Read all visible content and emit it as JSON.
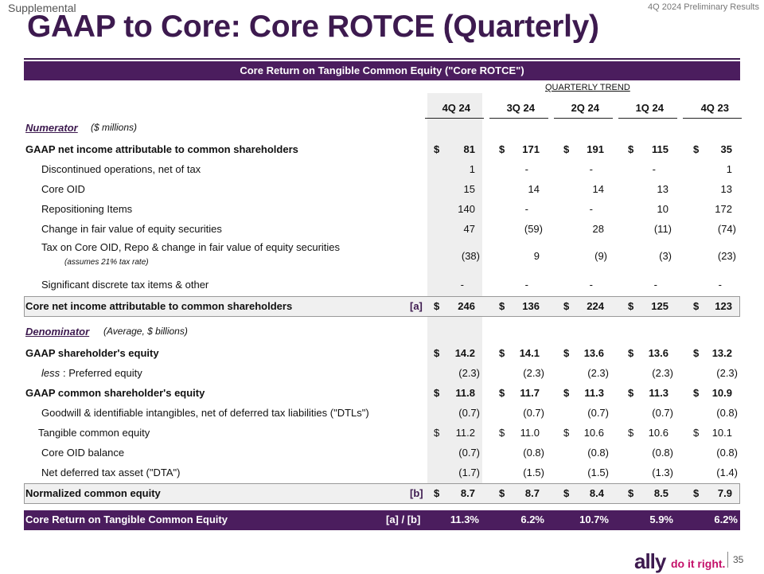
{
  "header": {
    "supplemental": "Supplemental",
    "prelim": "4Q 2024 Preliminary Results",
    "title": "GAAP to Core: Core ROTCE (Quarterly)"
  },
  "table": {
    "band_title": "Core Return on Tangible Common Equity (\"Core ROTCE\")",
    "trend_label": "QUARTERLY TREND",
    "columns": [
      "4Q 24",
      "3Q 24",
      "2Q 24",
      "1Q 24",
      "4Q 23"
    ],
    "numerator": {
      "label": "Numerator",
      "note": "($ millions)"
    },
    "denominator": {
      "label": "Denominator",
      "note": "(Average, $ billions)"
    },
    "rows": {
      "gaap_ni": {
        "label": "GAAP net income attributable to common shareholders",
        "cur": "$",
        "values": [
          "81",
          "171",
          "191",
          "115",
          "35"
        ]
      },
      "disc_ops": {
        "label": "Discontinued operations, net of tax",
        "values": [
          "1",
          "-",
          "-",
          "-",
          "1"
        ]
      },
      "core_oid": {
        "label": "Core OID",
        "values": [
          "15",
          "14",
          "14",
          "13",
          "13"
        ]
      },
      "repo": {
        "label": "Repositioning Items",
        "values": [
          "140",
          "-",
          "-",
          "10",
          "172"
        ]
      },
      "fv_change": {
        "label": "Change in fair value of equity securities",
        "values": [
          "47",
          "(59)",
          "28",
          "(11)",
          "(74)"
        ]
      },
      "tax": {
        "label": "Tax on Core OID, Repo & change in fair value of equity securities",
        "note": "(assumes 21% tax rate)",
        "values": [
          "(38)",
          "9",
          "(9)",
          "(3)",
          "(23)"
        ]
      },
      "sig_tax": {
        "label": "Significant discrete tax items & other",
        "values": [
          "-",
          "-",
          "-",
          "-",
          "-"
        ]
      },
      "core_ni": {
        "label": "Core net income attributable to common shareholders",
        "tag": "[a]",
        "cur": "$",
        "values": [
          "246",
          "136",
          "224",
          "125",
          "123"
        ]
      },
      "gaap_eq": {
        "label": "GAAP shareholder's equity",
        "cur": "$",
        "values": [
          "14.2",
          "14.1",
          "13.6",
          "13.6",
          "13.2"
        ]
      },
      "preferred": {
        "label_italic": "less",
        "label": ":  Preferred equity",
        "values": [
          "(2.3)",
          "(2.3)",
          "(2.3)",
          "(2.3)",
          "(2.3)"
        ]
      },
      "common_eq": {
        "label": "GAAP common shareholder's equity",
        "cur": "$",
        "values": [
          "11.8",
          "11.7",
          "11.3",
          "11.3",
          "10.9"
        ]
      },
      "goodwill": {
        "label": "Goodwill & identifiable intangibles, net of deferred tax liabilities (\"DTLs\")",
        "values": [
          "(0.7)",
          "(0.7)",
          "(0.7)",
          "(0.7)",
          "(0.8)"
        ]
      },
      "tangible": {
        "label": "Tangible common equity",
        "cur": "$",
        "values": [
          "11.2",
          "11.0",
          "10.6",
          "10.6",
          "10.1"
        ]
      },
      "oid_bal": {
        "label": "Core OID balance",
        "values": [
          "(0.7)",
          "(0.8)",
          "(0.8)",
          "(0.8)",
          "(0.8)"
        ]
      },
      "dta": {
        "label": "Net deferred tax asset (\"DTA\")",
        "values": [
          "(1.7)",
          "(1.5)",
          "(1.5)",
          "(1.3)",
          "(1.4)"
        ]
      },
      "normalized": {
        "label": "Normalized common equity",
        "tag": "[b]",
        "cur": "$",
        "values": [
          "8.7",
          "8.7",
          "8.4",
          "8.5",
          "7.9"
        ]
      },
      "rotce": {
        "label": "Core Return on Tangible Common Equity",
        "tag": "[a] / [b]",
        "values": [
          "11.3%",
          "6.2%",
          "10.7%",
          "5.9%",
          "6.2%"
        ]
      }
    }
  },
  "footer": {
    "logo": "ally",
    "tagline": "do it right.",
    "page": "35"
  }
}
